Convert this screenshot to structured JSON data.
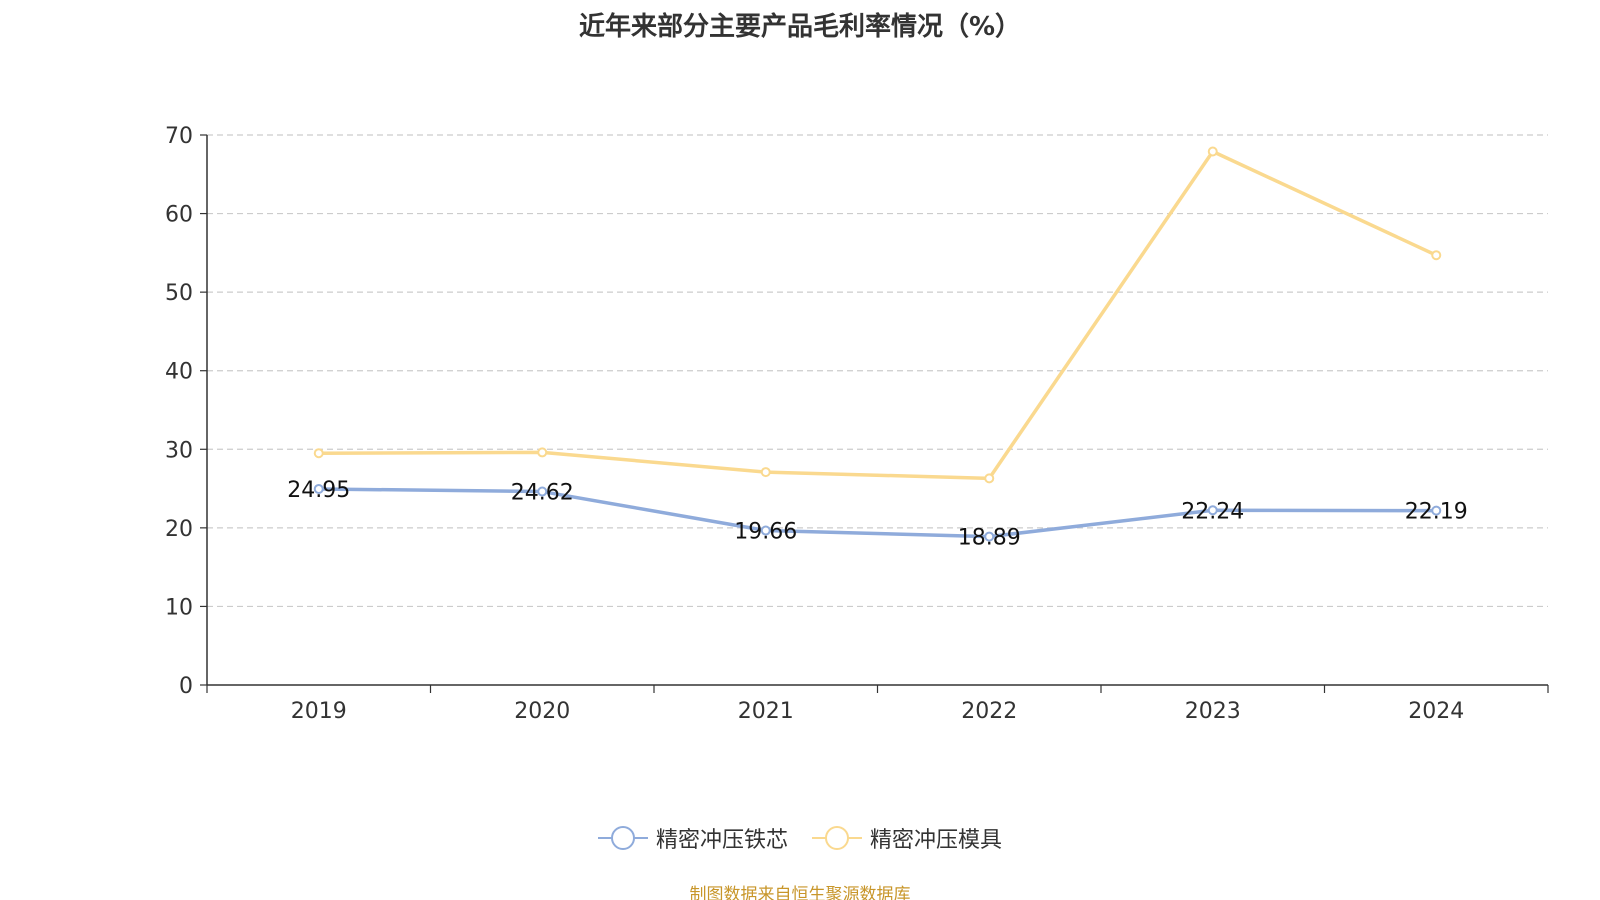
{
  "title": "近年来部分主要产品毛利率情况（%）",
  "source_note": "制图数据来自恒生聚源数据库",
  "colors": {
    "series1": "#8fabdb",
    "series2": "#fad98f",
    "grid": "#cccccc",
    "axis": "#333333",
    "text": "#333333"
  },
  "chart_data": {
    "type": "line",
    "categories": [
      "2019",
      "2020",
      "2021",
      "2022",
      "2023",
      "2024"
    ],
    "ylim": [
      0,
      70
    ],
    "yticks": [
      0,
      10,
      20,
      30,
      40,
      50,
      60,
      70
    ],
    "grid": true,
    "legend_position": "bottom",
    "series": [
      {
        "name": "精密冲压铁芯",
        "values": [
          24.95,
          24.62,
          19.66,
          18.89,
          22.24,
          22.19
        ],
        "labels": [
          "24.95",
          "24.62",
          "19.66",
          "18.89",
          "22.24",
          "22.19"
        ],
        "show_labels": true
      },
      {
        "name": "精密冲压模具",
        "values": [
          29.5,
          29.6,
          27.1,
          26.3,
          67.9,
          54.7
        ],
        "show_labels": false
      }
    ]
  }
}
